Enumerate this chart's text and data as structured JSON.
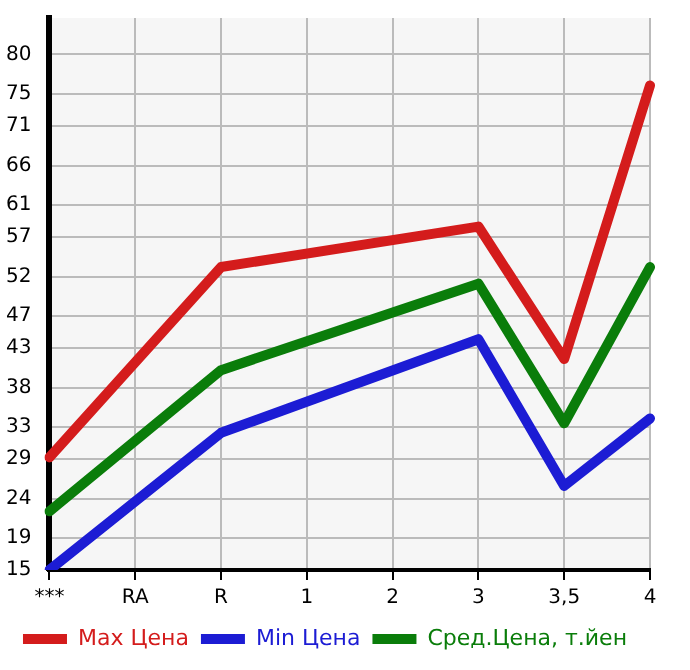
{
  "chart_data": {
    "type": "line",
    "categories": [
      "***",
      "RA",
      "R",
      "1",
      "2",
      "3",
      "3,5",
      "4"
    ],
    "series": [
      {
        "name": "Max Цена",
        "color": "#d41c1c",
        "values": [
          29.2,
          null,
          53.2,
          null,
          null,
          58.3,
          41.6,
          76.1
        ]
      },
      {
        "name": "Min Цена",
        "color": "#1c1cd4",
        "values": [
          15,
          null,
          32.3,
          null,
          null,
          44.1,
          25.6,
          34.1
        ]
      },
      {
        "name": "Сред.Цена, т.йен",
        "color": "#0a7d0a",
        "values": [
          22.4,
          null,
          40.2,
          null,
          null,
          51.1,
          33.5,
          53.2
        ]
      }
    ],
    "ylim": [
      15,
      84.6
    ],
    "yticks": [
      15,
      19,
      24,
      29,
      33,
      38,
      43,
      47,
      52,
      57,
      61,
      66,
      71,
      75,
      80
    ],
    "grid": true,
    "legend": "bottom",
    "marker": "none",
    "line_style": "solid"
  }
}
